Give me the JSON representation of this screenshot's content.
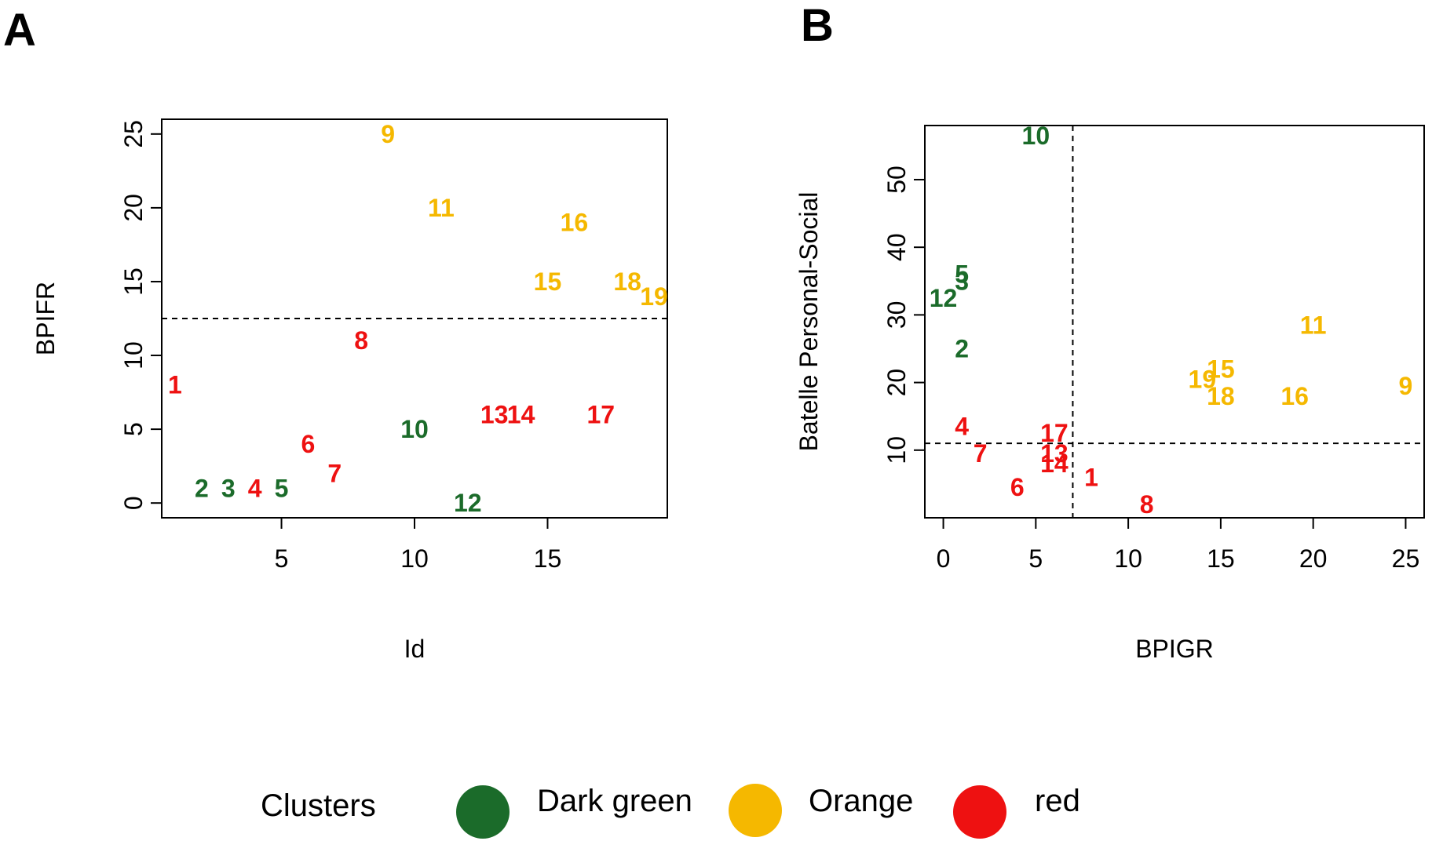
{
  "chart_data": [
    {
      "panel": "A",
      "type": "scatter",
      "xlabel": "Id",
      "ylabel": "BPIFR",
      "xlim": [
        0.5,
        19.5
      ],
      "ylim": [
        -1,
        26
      ],
      "xticks": [
        5,
        10,
        15
      ],
      "yticks": [
        0,
        5,
        10,
        15,
        20,
        25
      ],
      "hlines": [
        12.5
      ],
      "vlines": [],
      "points": [
        {
          "label": "1",
          "x": 1,
          "y": 8,
          "cluster": "red"
        },
        {
          "label": "2",
          "x": 2,
          "y": 1,
          "cluster": "dark-green"
        },
        {
          "label": "3",
          "x": 3,
          "y": 1,
          "cluster": "dark-green"
        },
        {
          "label": "4",
          "x": 4,
          "y": 1,
          "cluster": "red"
        },
        {
          "label": "5",
          "x": 5,
          "y": 1,
          "cluster": "dark-green"
        },
        {
          "label": "6",
          "x": 6,
          "y": 4,
          "cluster": "red"
        },
        {
          "label": "7",
          "x": 7,
          "y": 2,
          "cluster": "red"
        },
        {
          "label": "8",
          "x": 8,
          "y": 11,
          "cluster": "red"
        },
        {
          "label": "9",
          "x": 9,
          "y": 25,
          "cluster": "orange"
        },
        {
          "label": "10",
          "x": 10,
          "y": 5,
          "cluster": "dark-green"
        },
        {
          "label": "11",
          "x": 11,
          "y": 20,
          "cluster": "orange"
        },
        {
          "label": "12",
          "x": 12,
          "y": 0,
          "cluster": "dark-green"
        },
        {
          "label": "13",
          "x": 13,
          "y": 6,
          "cluster": "red"
        },
        {
          "label": "14",
          "x": 14,
          "y": 6,
          "cluster": "red"
        },
        {
          "label": "15",
          "x": 15,
          "y": 15,
          "cluster": "orange"
        },
        {
          "label": "16",
          "x": 16,
          "y": 19,
          "cluster": "orange"
        },
        {
          "label": "17",
          "x": 17,
          "y": 6,
          "cluster": "red"
        },
        {
          "label": "18",
          "x": 18,
          "y": 15,
          "cluster": "orange"
        },
        {
          "label": "19",
          "x": 19,
          "y": 14,
          "cluster": "orange"
        }
      ]
    },
    {
      "panel": "B",
      "type": "scatter",
      "xlabel": "BPIGR",
      "ylabel": "Batelle Personal-Social",
      "xlim": [
        -1,
        26
      ],
      "ylim": [
        0,
        58
      ],
      "xticks": [
        0,
        5,
        10,
        15,
        20,
        25
      ],
      "yticks": [
        10,
        20,
        30,
        40,
        50
      ],
      "hlines": [
        11
      ],
      "vlines": [
        7
      ],
      "points": [
        {
          "label": "1",
          "x": 8,
          "y": 6,
          "cluster": "red"
        },
        {
          "label": "2",
          "x": 1,
          "y": 25,
          "cluster": "dark-green"
        },
        {
          "label": "3",
          "x": 1,
          "y": 35,
          "cluster": "dark-green"
        },
        {
          "label": "4",
          "x": 1,
          "y": 13.5,
          "cluster": "red"
        },
        {
          "label": "5",
          "x": 1,
          "y": 36,
          "cluster": "dark-green"
        },
        {
          "label": "6",
          "x": 4,
          "y": 4.5,
          "cluster": "red"
        },
        {
          "label": "7",
          "x": 2,
          "y": 9.5,
          "cluster": "red"
        },
        {
          "label": "8",
          "x": 11,
          "y": 2,
          "cluster": "red"
        },
        {
          "label": "9",
          "x": 25,
          "y": 19.5,
          "cluster": "orange"
        },
        {
          "label": "10",
          "x": 5,
          "y": 56.5,
          "cluster": "dark-green"
        },
        {
          "label": "11",
          "x": 20,
          "y": 28.5,
          "cluster": "orange"
        },
        {
          "label": "12",
          "x": 0,
          "y": 32.5,
          "cluster": "dark-green"
        },
        {
          "label": "13",
          "x": 6,
          "y": 9.5,
          "cluster": "red"
        },
        {
          "label": "14",
          "x": 6,
          "y": 8,
          "cluster": "red"
        },
        {
          "label": "15",
          "x": 15,
          "y": 22,
          "cluster": "orange"
        },
        {
          "label": "16",
          "x": 19,
          "y": 18,
          "cluster": "orange"
        },
        {
          "label": "17",
          "x": 6,
          "y": 12.5,
          "cluster": "red"
        },
        {
          "label": "18",
          "x": 15,
          "y": 18,
          "cluster": "orange"
        },
        {
          "label": "19",
          "x": 14,
          "y": 20.5,
          "cluster": "orange"
        }
      ]
    }
  ],
  "panel_letters": {
    "a": "A",
    "b": "B"
  },
  "legend": {
    "title": "Clusters",
    "items": [
      {
        "key": "dark-green",
        "label": "Dark green",
        "color": "#1b6b2a"
      },
      {
        "key": "orange",
        "label": "Orange",
        "color": "#f5b800"
      },
      {
        "key": "red",
        "label": "red",
        "color": "#ee1111"
      }
    ]
  },
  "colors": {
    "dark-green": "#1b6b2a",
    "orange": "#f5b800",
    "red": "#ee1111"
  }
}
